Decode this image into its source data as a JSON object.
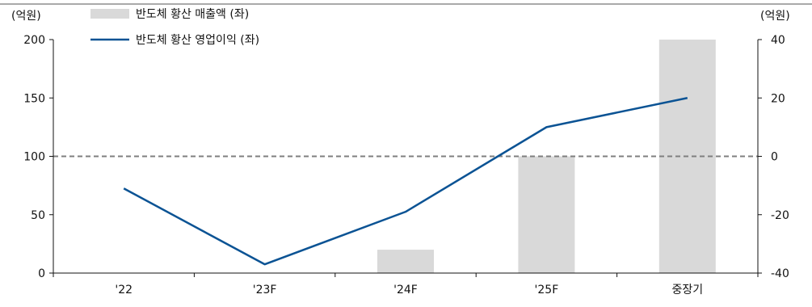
{
  "chart_data": {
    "type": "bar",
    "categories": [
      "'22",
      "'23F",
      "'24F",
      "'25F",
      "중장기"
    ],
    "series": [
      {
        "name": "반도체 황산 매출액 (좌)",
        "kind": "bar",
        "axis": "left",
        "color": "#d9d9d9",
        "values": [
          0,
          0,
          20,
          100,
          200
        ]
      },
      {
        "name": "반도체 황산 영업이익 (좌)",
        "kind": "line",
        "axis": "right",
        "color": "#0b5394",
        "values": [
          -11,
          -37,
          -19,
          10,
          20
        ]
      }
    ],
    "left_axis": {
      "unit": "(억원)",
      "ylim": [
        0,
        200
      ],
      "ticks": [
        0,
        50,
        100,
        150,
        200
      ]
    },
    "right_axis": {
      "unit": "(억원)",
      "ylim": [
        -40,
        40
      ],
      "ticks": [
        -40,
        -20,
        0,
        20,
        40
      ]
    },
    "reference_line": {
      "axis": "right",
      "value": 0,
      "style": "dashed",
      "color": "#7f7f7f"
    },
    "legend_placement": "top-left",
    "grid": false
  }
}
